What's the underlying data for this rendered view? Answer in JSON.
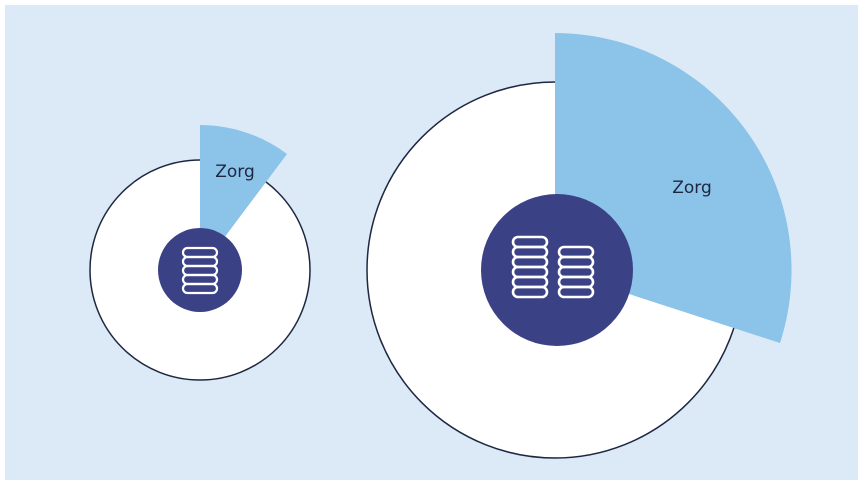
{
  "panels": [
    {
      "label": "Zorg"
    },
    {
      "label": "Zorg"
    }
  ]
}
